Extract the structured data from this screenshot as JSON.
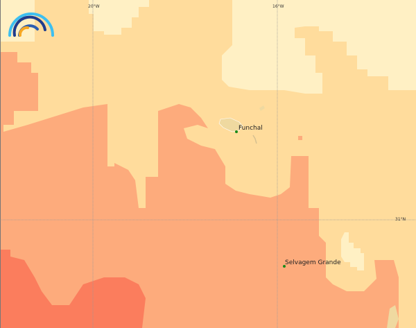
{
  "map": {
    "colors": {
      "pale": "#fff0c4",
      "tan": "#ffdc9c",
      "salmon": "#fdab7c",
      "red": "#fb7d5d",
      "land": "#efd9a0",
      "grid": "#999999",
      "place_marker": "#1a8a1a"
    },
    "graticule": {
      "lon_labels": [
        "20°W",
        "16°W"
      ],
      "lat_labels": [
        "31°N"
      ]
    },
    "places": [
      {
        "name": "Funchal"
      },
      {
        "name": "Selvagem Grande"
      }
    ],
    "logo": {
      "icon": "rainbow-arcs-logo-icon"
    }
  }
}
